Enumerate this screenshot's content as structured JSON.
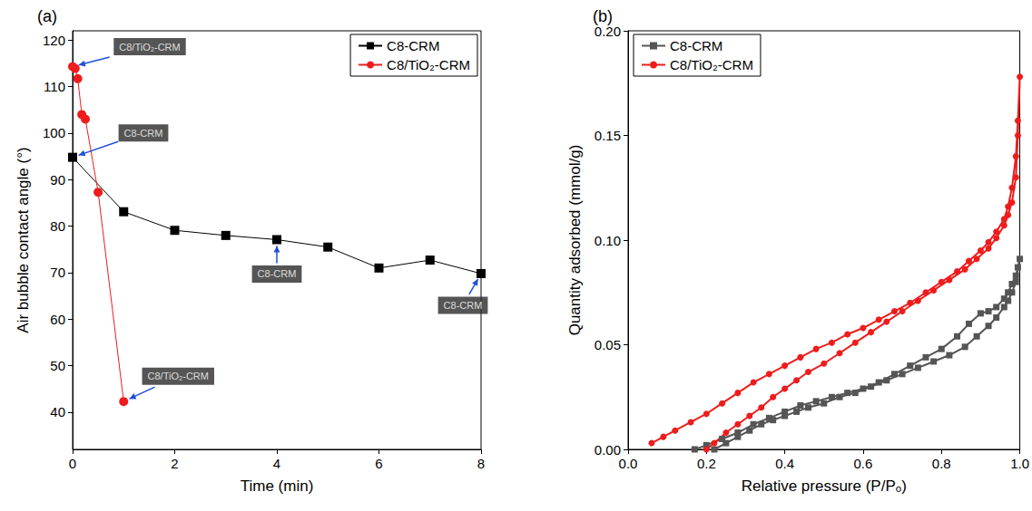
{
  "chart_data": [
    {
      "type": "line",
      "title": "(a)",
      "xlabel": "Time (min)",
      "ylabel": "Air bubble contact angle (°)",
      "xlim": [
        0,
        8
      ],
      "xticks": [
        0,
        2,
        4,
        6,
        8
      ],
      "ylim": [
        32,
        122
      ],
      "yticks": [
        40,
        50,
        60,
        70,
        80,
        90,
        100,
        110,
        120
      ],
      "grid": false,
      "legend": "upper right",
      "series": [
        {
          "name": "C8-CRM",
          "color": "#000000",
          "marker": "square",
          "x": [
            0,
            1,
            2,
            3,
            4,
            5,
            6,
            7,
            8
          ],
          "values": [
            94.8,
            83.1,
            79.1,
            78.0,
            77.1,
            75.5,
            71.0,
            72.7,
            69.8
          ]
        },
        {
          "name": "C8/TiO₂-CRM",
          "color": "#ee1c1c",
          "marker": "circle",
          "x": [
            0,
            0.05,
            0.1,
            0.18,
            0.25,
            0.5,
            1
          ],
          "values": [
            114.3,
            113.9,
            111.7,
            104.0,
            103.0,
            87.3,
            42.3
          ]
        }
      ],
      "annotations": [
        {
          "text": "C8/TiO₂-CRM",
          "x": 0,
          "y": 114.3
        },
        {
          "text": "C8-CRM",
          "x": 0,
          "y": 94.8
        },
        {
          "text": "C8-CRM",
          "x": 4,
          "y": 77.1
        },
        {
          "text": "C8-CRM",
          "x": 8,
          "y": 69.8
        },
        {
          "text": "C8/TiO₂-CRM",
          "x": 1,
          "y": 42.3
        }
      ]
    },
    {
      "type": "line",
      "title": "(b)",
      "xlabel": "Relative pressure (P/Pₒ)",
      "ylabel": "Quantity adsorbed (mmol/g)",
      "xlim": [
        0,
        1
      ],
      "xticks": [
        {
          "value": 0,
          "label": "0.0"
        },
        {
          "value": 0.2,
          "label": "0.2"
        },
        {
          "value": 0.4,
          "label": "0.4"
        },
        {
          "value": 0.6,
          "label": "0.6"
        },
        {
          "value": 0.8,
          "label": "0.8"
        },
        {
          "value": 1,
          "label": "1.0"
        }
      ],
      "ylim": [
        0,
        0.2
      ],
      "yticks": [
        {
          "value": 0,
          "label": "0.00"
        },
        {
          "value": 0.05,
          "label": "0.05"
        },
        {
          "value": 0.1,
          "label": "0.10"
        },
        {
          "value": 0.15,
          "label": "0.15"
        },
        {
          "value": 0.2,
          "label": "0.20"
        }
      ],
      "grid": false,
      "legend": "upper left",
      "series": [
        {
          "name": "C8-CRM",
          "color": "#555555",
          "marker": "square",
          "x": [
            0.22,
            0.25,
            0.28,
            0.31,
            0.34,
            0.37,
            0.4,
            0.43,
            0.46,
            0.5,
            0.54,
            0.58,
            0.62,
            0.66,
            0.7,
            0.74,
            0.78,
            0.82,
            0.86,
            0.89,
            0.92,
            0.94,
            0.96,
            0.97,
            0.98,
            0.99,
            1.0,
            0.995,
            0.99,
            0.98,
            0.97,
            0.96,
            0.94,
            0.92,
            0.9,
            0.87,
            0.84,
            0.8,
            0.76,
            0.72,
            0.68,
            0.64,
            0.6,
            0.56,
            0.52,
            0.48,
            0.44,
            0.4,
            0.36,
            0.32,
            0.28,
            0.24,
            0.2,
            0.17
          ],
          "values": [
            0.0,
            0.003,
            0.006,
            0.009,
            0.012,
            0.014,
            0.016,
            0.018,
            0.02,
            0.022,
            0.025,
            0.027,
            0.03,
            0.033,
            0.036,
            0.039,
            0.042,
            0.045,
            0.049,
            0.054,
            0.059,
            0.063,
            0.068,
            0.071,
            0.075,
            0.08,
            0.091,
            0.087,
            0.083,
            0.079,
            0.075,
            0.072,
            0.068,
            0.066,
            0.065,
            0.06,
            0.054,
            0.048,
            0.044,
            0.04,
            0.036,
            0.032,
            0.029,
            0.027,
            0.025,
            0.023,
            0.021,
            0.018,
            0.015,
            0.012,
            0.008,
            0.005,
            0.002,
            0.0
          ]
        },
        {
          "name": "C8/TiO₂-CRM",
          "color": "#ee1c1c",
          "marker": "circle",
          "x": [
            0.2,
            0.22,
            0.25,
            0.28,
            0.31,
            0.34,
            0.37,
            0.4,
            0.43,
            0.46,
            0.5,
            0.54,
            0.58,
            0.62,
            0.66,
            0.7,
            0.74,
            0.78,
            0.82,
            0.86,
            0.89,
            0.92,
            0.94,
            0.96,
            0.97,
            0.98,
            0.99,
            0.995,
            1.0,
            0.995,
            0.99,
            0.98,
            0.97,
            0.96,
            0.94,
            0.92,
            0.9,
            0.87,
            0.84,
            0.8,
            0.76,
            0.72,
            0.68,
            0.64,
            0.6,
            0.56,
            0.52,
            0.48,
            0.44,
            0.4,
            0.36,
            0.32,
            0.28,
            0.24,
            0.2,
            0.16,
            0.12,
            0.09,
            0.06
          ],
          "values": [
            0.0,
            0.003,
            0.008,
            0.012,
            0.016,
            0.02,
            0.025,
            0.029,
            0.033,
            0.037,
            0.041,
            0.046,
            0.051,
            0.056,
            0.061,
            0.066,
            0.071,
            0.076,
            0.081,
            0.086,
            0.091,
            0.096,
            0.101,
            0.107,
            0.112,
            0.118,
            0.13,
            0.15,
            0.178,
            0.157,
            0.14,
            0.125,
            0.116,
            0.11,
            0.104,
            0.099,
            0.095,
            0.09,
            0.085,
            0.08,
            0.075,
            0.07,
            0.066,
            0.062,
            0.058,
            0.055,
            0.051,
            0.048,
            0.044,
            0.04,
            0.036,
            0.032,
            0.027,
            0.022,
            0.017,
            0.013,
            0.009,
            0.006,
            0.003
          ]
        }
      ]
    }
  ]
}
